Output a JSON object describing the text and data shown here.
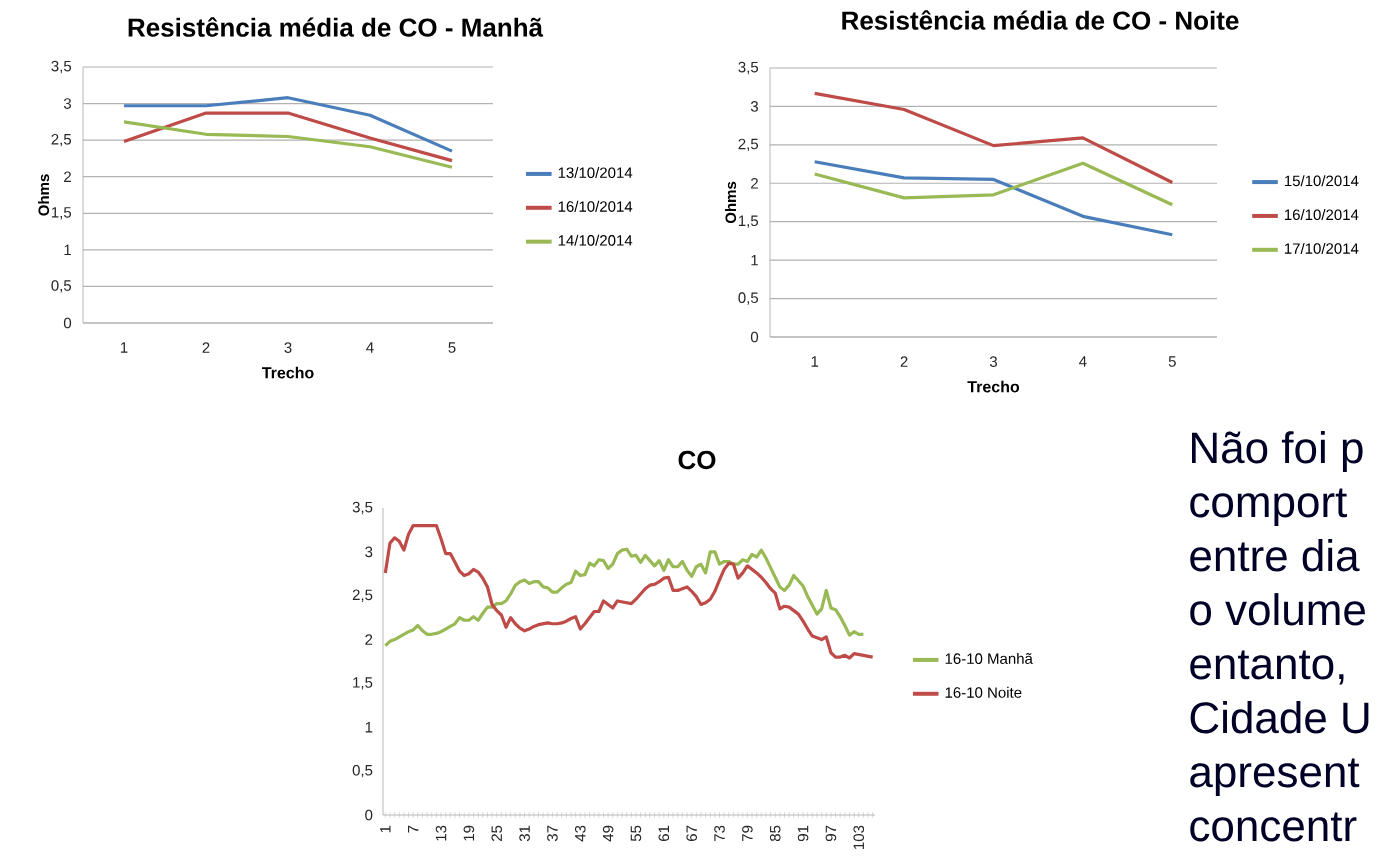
{
  "chart_data": [
    {
      "type": "line",
      "title": "Resistência média de CO - Manhã",
      "xlabel": "Trecho",
      "ylabel": "Ohms",
      "categories": [
        "1",
        "2",
        "3",
        "4",
        "5"
      ],
      "series": [
        {
          "name": "13/10/2014",
          "color": "#4a7ebb",
          "values": [
            2.97,
            2.97,
            3.08,
            2.84,
            2.35
          ]
        },
        {
          "name": "16/10/2014",
          "color": "#be4b48",
          "values": [
            2.48,
            2.87,
            2.87,
            2.53,
            2.22
          ]
        },
        {
          "name": "14/10/2014",
          "color": "#98b954",
          "values": [
            2.75,
            2.58,
            2.55,
            2.41,
            2.13
          ]
        }
      ],
      "ylim": [
        0,
        3.5
      ],
      "yticks": [
        0,
        {
          "value": 0.5,
          "label": "0,5"
        },
        1,
        {
          "value": 1.5,
          "label": "1,5"
        },
        2,
        {
          "value": 2.5,
          "label": "2,5"
        },
        3,
        {
          "value": 3.5,
          "label": "3,5"
        }
      ],
      "grid": "y",
      "legend": "right"
    },
    {
      "type": "line",
      "title": "Resistência média de CO - Noite",
      "xlabel": "Trecho",
      "ylabel": "Ohms",
      "categories": [
        "1",
        "2",
        "3",
        "4",
        "5"
      ],
      "series": [
        {
          "name": "15/10/2014",
          "color": "#4a7ebb",
          "values": [
            2.28,
            2.07,
            2.05,
            1.57,
            1.33
          ]
        },
        {
          "name": "16/10/2014",
          "color": "#be4b48",
          "values": [
            3.17,
            2.96,
            2.49,
            2.59,
            2.01
          ]
        },
        {
          "name": "17/10/2014",
          "color": "#98b954",
          "values": [
            2.12,
            1.81,
            1.85,
            2.26,
            1.72
          ]
        }
      ],
      "ylim": [
        0,
        3.5
      ],
      "yticks": [
        0,
        {
          "value": 0.5,
          "label": "0,5"
        },
        1,
        {
          "value": 1.5,
          "label": "1,5"
        },
        2,
        {
          "value": 2.5,
          "label": "2,5"
        },
        3,
        {
          "value": 3.5,
          "label": "3,5"
        }
      ],
      "grid": "y",
      "legend": "right"
    },
    {
      "type": "line",
      "title": "CO",
      "categories": [
        "1",
        null,
        null,
        null,
        null,
        null,
        "7",
        null,
        null,
        null,
        null,
        null,
        "13",
        null,
        null,
        null,
        null,
        null,
        "19",
        null,
        null,
        null,
        null,
        null,
        "25",
        null,
        null,
        null,
        null,
        null,
        "31",
        null,
        null,
        null,
        null,
        null,
        "37",
        null,
        null,
        null,
        null,
        null,
        "43",
        null,
        null,
        null,
        null,
        null,
        "49",
        null,
        null,
        null,
        null,
        null,
        "55",
        null,
        null,
        null,
        null,
        null,
        "61",
        null,
        null,
        null,
        null,
        null,
        "67",
        null,
        null,
        null,
        null,
        null,
        "73",
        null,
        null,
        null,
        null,
        null,
        "79",
        null,
        null,
        null,
        null,
        null,
        "85",
        null,
        null,
        null,
        null,
        null,
        "91",
        null,
        null,
        null,
        null,
        null,
        "97",
        null,
        null,
        null,
        null,
        null,
        "103",
        null,
        null,
        null
      ],
      "series": [
        {
          "name": "16-10 Manhã",
          "color": "#98b954",
          "values": [
            1.93,
            1.98,
            2.0,
            2.03,
            2.06,
            2.09,
            2.11,
            2.16,
            2.1,
            2.06,
            2.06,
            2.07,
            2.09,
            2.12,
            2.15,
            2.18,
            2.25,
            2.22,
            2.22,
            2.26,
            2.22,
            2.3,
            2.37,
            2.37,
            2.41,
            2.41,
            2.44,
            2.52,
            2.62,
            2.66,
            2.68,
            2.64,
            2.66,
            2.66,
            2.6,
            2.59,
            2.54,
            2.54,
            2.59,
            2.63,
            2.65,
            2.78,
            2.73,
            2.74,
            2.87,
            2.84,
            2.91,
            2.9,
            2.81,
            2.86,
            2.98,
            3.02,
            3.03,
            2.95,
            2.96,
            2.88,
            2.96,
            2.9,
            2.84,
            2.9,
            2.79,
            2.91,
            2.83,
            2.83,
            2.89,
            2.79,
            2.72,
            2.83,
            2.86,
            2.76,
            3.0,
            3.0,
            2.86,
            2.89,
            2.89,
            2.86,
            2.86,
            2.91,
            2.89,
            2.97,
            2.94,
            3.02,
            2.93,
            2.82,
            2.71,
            2.6,
            2.56,
            2.62,
            2.73,
            2.67,
            2.61,
            2.49,
            2.39,
            2.29,
            2.35,
            2.56,
            2.36,
            2.34,
            2.26,
            2.16,
            2.05,
            2.09,
            2.06,
            2.06,
            null,
            null
          ]
        },
        {
          "name": "16-10 Noite",
          "color": "#be4b48",
          "values": [
            2.76,
            3.1,
            3.16,
            3.12,
            3.02,
            3.2,
            3.3,
            3.3,
            3.3,
            3.3,
            3.3,
            3.3,
            3.15,
            2.98,
            2.98,
            2.88,
            2.78,
            2.73,
            2.75,
            2.8,
            2.77,
            2.7,
            2.6,
            2.4,
            2.33,
            2.28,
            2.14,
            2.25,
            2.18,
            2.13,
            2.1,
            2.12,
            2.15,
            2.17,
            2.18,
            2.19,
            2.18,
            2.18,
            2.19,
            2.21,
            2.24,
            2.26,
            2.12,
            2.18,
            2.25,
            2.32,
            2.32,
            2.44,
            2.4,
            2.36,
            2.44,
            2.43,
            2.42,
            2.41,
            2.46,
            2.52,
            2.58,
            2.62,
            2.63,
            2.66,
            2.7,
            2.71,
            2.56,
            2.56,
            2.58,
            2.6,
            2.55,
            2.49,
            2.4,
            2.42,
            2.46,
            2.55,
            2.68,
            2.8,
            2.87,
            2.86,
            2.7,
            2.76,
            2.84,
            2.8,
            2.76,
            2.71,
            2.65,
            2.58,
            2.53,
            2.35,
            2.38,
            2.37,
            2.33,
            2.29,
            2.21,
            2.12,
            2.04,
            2.02,
            2.0,
            2.03,
            1.85,
            1.8,
            1.8,
            1.82,
            1.79,
            1.84,
            1.83,
            1.82,
            1.81,
            1.8
          ]
        }
      ],
      "ylim": [
        0,
        3.5
      ],
      "yticks": [
        0,
        {
          "value": 0.5,
          "label": "0,5"
        },
        1,
        {
          "value": 1.5,
          "label": "1,5"
        },
        2,
        {
          "value": 2.5,
          "label": "2,5"
        },
        3,
        {
          "value": 3.5,
          "label": "3,5"
        }
      ],
      "grid": false,
      "legend": "right",
      "annotations": [
        "Não foi p",
        "comport",
        "entre dia",
        "o volume",
        "entanto,",
        "Cidade U",
        "apresent",
        "concentr"
      ]
    }
  ]
}
